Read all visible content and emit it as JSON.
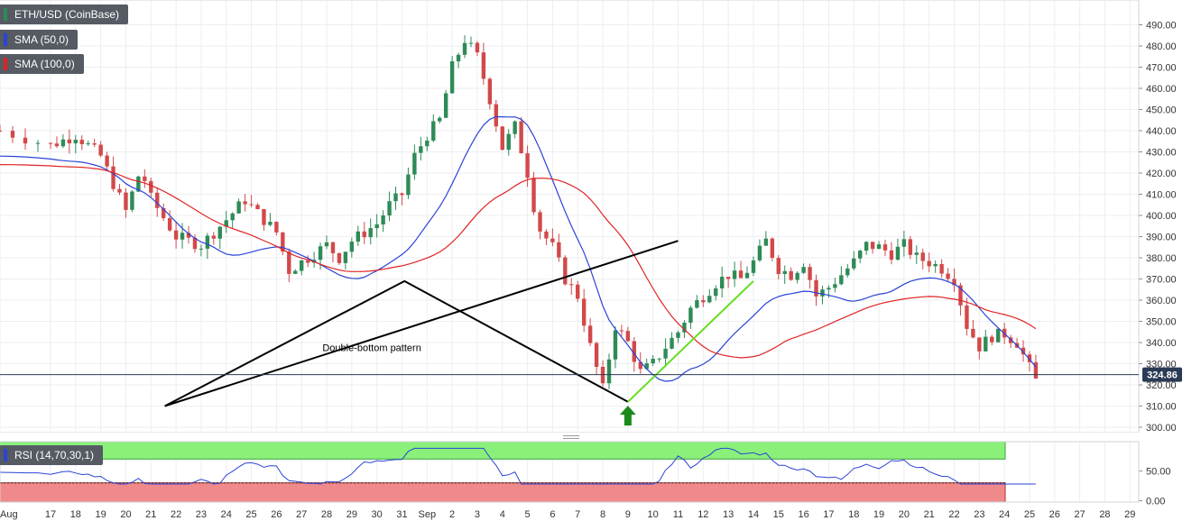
{
  "instrument_label": "ETH/USD (CoinBase)",
  "indicators": {
    "sma50": {
      "label": "SMA (50,0)",
      "color": "#2a44d6"
    },
    "sma100": {
      "label": "SMA (100,0)",
      "color": "#e02424"
    },
    "rsi": {
      "label": "RSI (14,70,30,1)",
      "color": "#2a44d6"
    }
  },
  "last_price_label": "324.86",
  "annotation": "Double-bottom pattern",
  "colors": {
    "up": "#2e8b57",
    "down": "#d2494a",
    "pattern_line": "#000000",
    "projection_line": "#66dd22",
    "arrow": "#1a8a1a",
    "rsi_overbought_zone": "#8af07a",
    "rsi_oversold_zone": "#f08a8a",
    "price_tag_bg": "#2b3a55"
  },
  "chart_data": [
    {
      "type": "candlestick",
      "title": "",
      "x_tick_labels": [
        "Aug",
        "17",
        "18",
        "19",
        "20",
        "21",
        "22",
        "23",
        "24",
        "25",
        "26",
        "27",
        "28",
        "29",
        "30",
        "31",
        "Sep",
        "2",
        "3",
        "4",
        "5",
        "6",
        "7",
        "8",
        "9",
        "10",
        "11",
        "12",
        "13",
        "14",
        "15",
        "16",
        "17",
        "18",
        "19",
        "20",
        "21",
        "22",
        "23",
        "24",
        "25",
        "26",
        "27",
        "28",
        "29"
      ],
      "y_tick_labels": [
        "490.00",
        "480.00",
        "470.00",
        "460.00",
        "450.00",
        "440.00",
        "430.00",
        "420.00",
        "410.00",
        "400.00",
        "390.00",
        "380.00",
        "370.00",
        "360.00",
        "350.00",
        "340.00",
        "330.00",
        "320.00",
        "310.00",
        "300.00"
      ],
      "ylim": [
        296,
        494
      ],
      "last_price": 324.86,
      "grid": true,
      "pattern_points": [
        {
          "x": 26.0,
          "y": 388
        },
        {
          "x": 5.55,
          "y": 310
        },
        {
          "x": 15.1,
          "y": 369
        },
        {
          "x": 24.0,
          "y": 312
        }
      ],
      "projection_line": [
        {
          "x": 24.0,
          "y": 312
        },
        {
          "x": 29.0,
          "y": 369
        }
      ],
      "annotation_anchor": {
        "x": 13.8,
        "y": 336
      },
      "arrow_at": {
        "x": 24.0,
        "y": 311
      }
    },
    {
      "type": "line",
      "title": "",
      "y_tick_labels": [
        "50.00",
        "0.00"
      ],
      "ylim": [
        0,
        100
      ],
      "overbought": 70,
      "oversold": 30,
      "series": [
        {
          "name": "RSI (14,70,30,1)"
        }
      ]
    }
  ]
}
